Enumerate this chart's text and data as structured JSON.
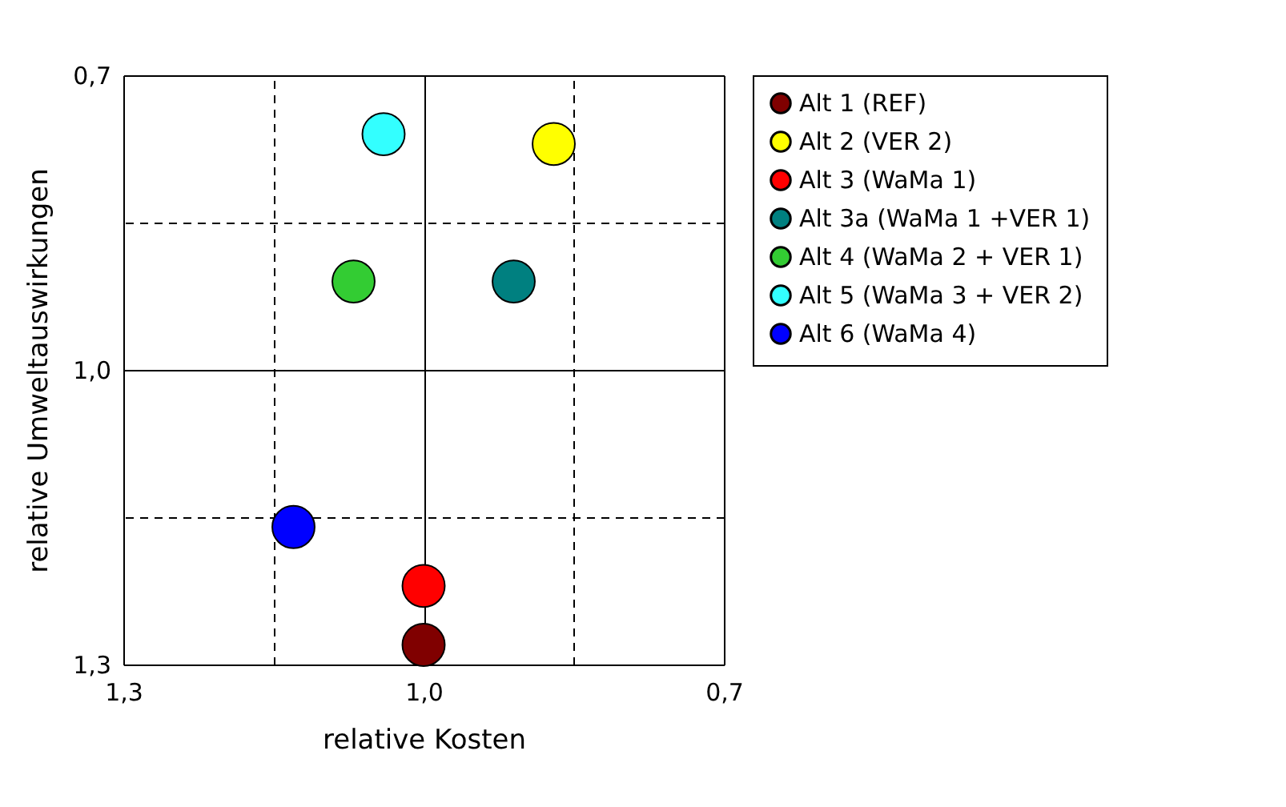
{
  "chart_data": {
    "type": "scatter",
    "xlabel": "relative Kosten",
    "ylabel": "relative Umweltauswirkungen",
    "series": [
      {
        "name": "Alt 1 (REF)",
        "color": "#800000",
        "x": [
          1.0
        ],
        "values": [
          1.28
        ]
      },
      {
        "name": "Alt 2 (VER 2)",
        "color": "#ffff00",
        "x": [
          0.87
        ],
        "values": [
          0.77
        ]
      },
      {
        "name": "Alt 3 (WaMa 1)",
        "color": "#ff0000",
        "x": [
          1.0
        ],
        "values": [
          1.22
        ]
      },
      {
        "name": "Alt 3a (WaMa 1 +VER 1)",
        "color": "#008080",
        "x": [
          0.91
        ],
        "values": [
          0.91
        ]
      },
      {
        "name": "Alt 4 (WaMa 2 + VER 1)",
        "color": "#33cc33",
        "x": [
          1.07
        ],
        "values": [
          0.91
        ]
      },
      {
        "name": "Alt 5 (WaMa 3 + VER 2)",
        "color": "#33ffff",
        "x": [
          1.04
        ],
        "values": [
          0.76
        ]
      },
      {
        "name": "Alt 6 (WaMa 4)",
        "color": "#0000ff",
        "x": [
          1.13
        ],
        "values": [
          1.16
        ]
      }
    ],
    "xlim": [
      1.3,
      0.7
    ],
    "ylim": [
      1.3,
      0.7
    ],
    "xticks": [
      {
        "value": 1.3,
        "label": "1,3"
      },
      {
        "value": 1.15,
        "label": null
      },
      {
        "value": 1.0,
        "label": "1,0"
      },
      {
        "value": 0.85,
        "label": null
      },
      {
        "value": 0.7,
        "label": "0,7"
      }
    ],
    "yticks": [
      {
        "value": 1.3,
        "label": "1,3"
      },
      {
        "value": 1.15,
        "label": null
      },
      {
        "value": 1.0,
        "label": "1,0"
      },
      {
        "value": 0.85,
        "label": null
      },
      {
        "value": 0.7,
        "label": "0,7"
      }
    ],
    "grid": true,
    "legend": "right",
    "marker": "circle"
  }
}
